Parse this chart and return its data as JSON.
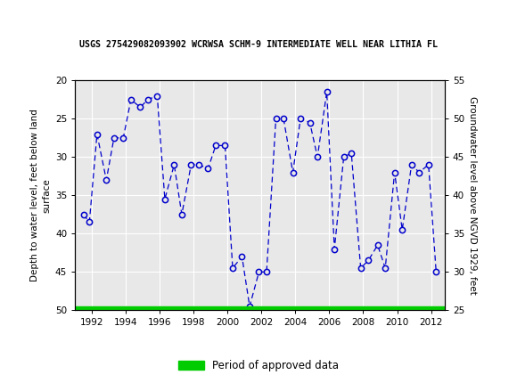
{
  "title": "USGS 275429082093902 WCRWSA SCHM-9 INTERMEDIATE WELL NEAR LITHIA FL",
  "ylabel_left": "Depth to water level, feet below land\nsurface",
  "ylabel_right": "Groundwater level above NGVD 1929, feet",
  "ylim_left": [
    50,
    20
  ],
  "ylim_right": [
    25,
    55
  ],
  "yticks_left": [
    20,
    25,
    30,
    35,
    40,
    45,
    50
  ],
  "yticks_right": [
    25,
    30,
    35,
    40,
    45,
    50,
    55
  ],
  "xlim": [
    1991.0,
    2012.8
  ],
  "xticks": [
    1992,
    1994,
    1996,
    1998,
    2000,
    2002,
    2004,
    2006,
    2008,
    2010,
    2012
  ],
  "background_color": "#ffffff",
  "plot_bg_color": "#e8e8e8",
  "grid_color": "#ffffff",
  "line_color": "#0000cc",
  "marker_color": "#0000cc",
  "header_color": "#006633",
  "legend_label": "Period of approved data",
  "legend_color": "#00cc00",
  "data_years": [
    1991.5,
    1991.85,
    1992.3,
    1992.85,
    1993.3,
    1993.85,
    1994.3,
    1994.85,
    1995.3,
    1995.85,
    1996.3,
    1996.85,
    1997.3,
    1997.85,
    1998.3,
    1998.85,
    1999.3,
    1999.85,
    2000.3,
    2000.85,
    2001.3,
    2001.85,
    2002.3,
    2002.85,
    2003.3,
    2003.85,
    2004.3,
    2004.85,
    2005.3,
    2005.85,
    2006.3,
    2006.85,
    2007.3,
    2007.85,
    2008.3,
    2008.85,
    2009.3,
    2009.85,
    2010.3,
    2010.85,
    2011.3,
    2011.85,
    2012.3
  ],
  "data_depth": [
    37.5,
    38.5,
    27.0,
    33.0,
    27.5,
    27.5,
    22.5,
    23.5,
    22.5,
    22.0,
    35.5,
    31.0,
    37.5,
    31.0,
    31.0,
    31.5,
    28.5,
    28.5,
    44.5,
    43.0,
    49.5,
    45.0,
    45.0,
    25.0,
    25.0,
    32.0,
    25.0,
    25.5,
    30.0,
    21.5,
    42.0,
    30.0,
    29.5,
    44.5,
    43.5,
    41.5,
    44.5,
    32.0,
    39.5,
    31.0,
    32.0,
    31.0,
    45.0
  ]
}
